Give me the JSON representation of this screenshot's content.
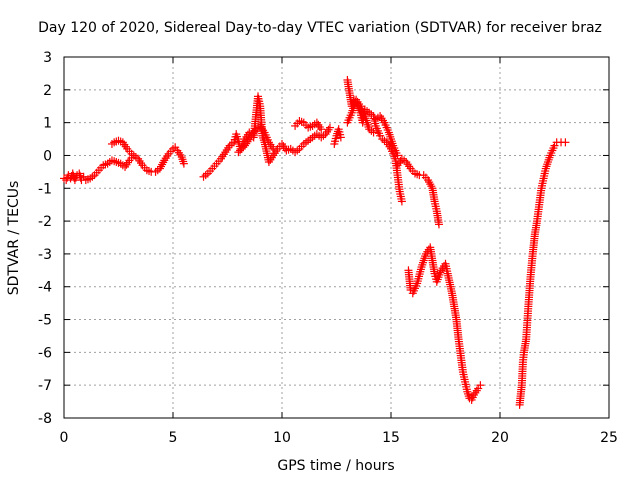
{
  "chart_data": {
    "type": "scatter",
    "title": "Day 120 of 2020, Sidereal Day-to-day VTEC variation (SDTVAR) for receiver braz",
    "xlabel": "GPS time / hours",
    "ylabel": "SDTVAR / TECUs",
    "xlim": [
      0,
      25
    ],
    "ylim": [
      -8,
      3
    ],
    "xticks": [
      0,
      5,
      10,
      15,
      20,
      25
    ],
    "yticks": [
      -8,
      -7,
      -6,
      -5,
      -4,
      -3,
      -2,
      -1,
      0,
      1,
      2,
      3
    ],
    "grid": true,
    "marker": "+",
    "color": "#ff0000",
    "series": [
      {
        "name": "braz",
        "segments": [
          [
            [
              0.0,
              -0.7
            ],
            [
              0.1,
              -0.75
            ],
            [
              0.2,
              -0.6
            ],
            [
              0.3,
              -0.7
            ],
            [
              0.4,
              -0.55
            ],
            [
              0.5,
              -0.75
            ],
            [
              0.6,
              -0.6
            ],
            [
              0.7,
              -0.55
            ],
            [
              0.8,
              -0.75
            ],
            [
              0.9,
              -0.65
            ],
            [
              1.0,
              -0.75
            ],
            [
              1.2,
              -0.7
            ],
            [
              1.4,
              -0.6
            ],
            [
              1.6,
              -0.45
            ],
            [
              1.8,
              -0.3
            ],
            [
              2.0,
              -0.25
            ],
            [
              2.2,
              -0.15
            ],
            [
              2.4,
              -0.2
            ],
            [
              2.6,
              -0.25
            ],
            [
              2.8,
              -0.35
            ],
            [
              3.0,
              -0.15
            ],
            [
              3.2,
              0.0
            ],
            [
              3.4,
              -0.1
            ],
            [
              3.6,
              -0.3
            ],
            [
              3.8,
              -0.45
            ],
            [
              4.0,
              -0.5
            ],
            [
              4.2,
              -0.5
            ],
            [
              4.4,
              -0.4
            ],
            [
              4.6,
              -0.15
            ],
            [
              4.8,
              0.05
            ],
            [
              5.0,
              0.2
            ],
            [
              5.1,
              0.25
            ],
            [
              5.2,
              0.15
            ],
            [
              5.4,
              -0.05
            ],
            [
              5.5,
              -0.25
            ]
          ],
          [
            [
              2.2,
              0.35
            ],
            [
              2.3,
              0.4
            ],
            [
              2.5,
              0.45
            ],
            [
              2.7,
              0.4
            ],
            [
              2.9,
              0.2
            ],
            [
              3.1,
              0.05
            ]
          ],
          [
            [
              6.4,
              -0.65
            ],
            [
              6.6,
              -0.55
            ],
            [
              6.8,
              -0.4
            ],
            [
              7.0,
              -0.25
            ],
            [
              7.2,
              -0.1
            ],
            [
              7.4,
              0.1
            ],
            [
              7.6,
              0.3
            ],
            [
              7.8,
              0.4
            ],
            [
              7.9,
              0.65
            ],
            [
              8.1,
              0.2
            ],
            [
              8.3,
              0.5
            ],
            [
              8.5,
              0.7
            ],
            [
              8.7,
              0.55
            ],
            [
              8.9,
              1.8
            ],
            [
              9.0,
              1.5
            ],
            [
              9.1,
              0.6
            ],
            [
              9.2,
              0.4
            ],
            [
              9.4,
              -0.2
            ],
            [
              9.6,
              0.0
            ],
            [
              9.8,
              0.2
            ],
            [
              10.0,
              0.35
            ],
            [
              10.2,
              0.15
            ],
            [
              10.4,
              0.2
            ],
            [
              10.6,
              0.1
            ],
            [
              10.8,
              0.2
            ],
            [
              11.0,
              0.35
            ],
            [
              11.2,
              0.45
            ],
            [
              11.4,
              0.55
            ],
            [
              11.6,
              0.65
            ],
            [
              11.8,
              0.55
            ],
            [
              12.0,
              0.65
            ],
            [
              12.2,
              0.85
            ]
          ],
          [
            [
              8.0,
              0.1
            ],
            [
              8.3,
              0.3
            ],
            [
              8.6,
              0.6
            ],
            [
              8.8,
              0.8
            ],
            [
              9.0,
              0.9
            ],
            [
              9.2,
              0.7
            ],
            [
              9.4,
              0.4
            ],
            [
              9.6,
              0.2
            ]
          ],
          [
            [
              10.6,
              0.9
            ],
            [
              10.8,
              1.05
            ],
            [
              11.0,
              1.0
            ],
            [
              11.2,
              0.85
            ],
            [
              11.4,
              0.9
            ],
            [
              11.6,
              1.0
            ],
            [
              11.8,
              0.8
            ]
          ],
          [
            [
              12.4,
              0.35
            ],
            [
              12.5,
              0.6
            ],
            [
              12.6,
              0.8
            ],
            [
              12.7,
              0.55
            ]
          ],
          [
            [
              13.0,
              2.3
            ],
            [
              13.1,
              1.9
            ],
            [
              13.2,
              1.5
            ],
            [
              13.3,
              1.7
            ],
            [
              13.4,
              1.6
            ],
            [
              13.5,
              1.45
            ],
            [
              13.6,
              1.3
            ],
            [
              13.7,
              1.0
            ],
            [
              13.8,
              1.4
            ],
            [
              14.0,
              1.3
            ],
            [
              14.2,
              1.2
            ],
            [
              14.3,
              0.9
            ],
            [
              14.5,
              0.6
            ],
            [
              14.6,
              0.5
            ],
            [
              14.8,
              0.4
            ],
            [
              15.0,
              0.2
            ],
            [
              15.2,
              -0.1
            ],
            [
              15.3,
              -0.6
            ],
            [
              15.4,
              -1.1
            ],
            [
              15.5,
              -1.4
            ]
          ],
          [
            [
              13.0,
              1.0
            ],
            [
              13.2,
              1.3
            ],
            [
              13.4,
              1.7
            ],
            [
              13.6,
              1.5
            ],
            [
              13.8,
              1.2
            ],
            [
              14.0,
              0.8
            ],
            [
              14.2,
              0.7
            ]
          ],
          [
            [
              14.3,
              1.1
            ],
            [
              14.5,
              1.2
            ],
            [
              14.7,
              1.0
            ],
            [
              14.9,
              0.7
            ],
            [
              15.1,
              0.3
            ],
            [
              15.3,
              0.0
            ]
          ],
          [
            [
              15.3,
              -0.3
            ],
            [
              15.5,
              -0.1
            ],
            [
              15.7,
              -0.2
            ],
            [
              15.9,
              -0.4
            ],
            [
              16.1,
              -0.55
            ],
            [
              16.3,
              -0.6
            ],
            [
              16.5,
              -0.6
            ],
            [
              16.7,
              -0.75
            ],
            [
              16.9,
              -1.0
            ],
            [
              17.0,
              -1.4
            ],
            [
              17.1,
              -1.7
            ],
            [
              17.2,
              -2.1
            ]
          ],
          [
            [
              15.8,
              -3.5
            ],
            [
              15.9,
              -4.1
            ],
            [
              16.0,
              -4.2
            ],
            [
              16.2,
              -3.9
            ],
            [
              16.4,
              -3.4
            ],
            [
              16.6,
              -3.0
            ],
            [
              16.8,
              -2.8
            ],
            [
              16.9,
              -3.2
            ],
            [
              17.0,
              -3.6
            ],
            [
              17.1,
              -3.85
            ],
            [
              17.3,
              -3.5
            ],
            [
              17.5,
              -3.3
            ],
            [
              17.6,
              -3.6
            ],
            [
              17.8,
              -4.2
            ],
            [
              18.0,
              -5.0
            ],
            [
              18.1,
              -5.6
            ],
            [
              18.2,
              -6.1
            ],
            [
              18.3,
              -6.6
            ],
            [
              18.4,
              -6.9
            ],
            [
              18.5,
              -7.2
            ],
            [
              18.6,
              -7.4
            ],
            [
              18.7,
              -7.45
            ],
            [
              18.8,
              -7.3
            ],
            [
              19.0,
              -7.1
            ],
            [
              19.1,
              -7.0
            ]
          ],
          [
            [
              20.9,
              -7.6
            ],
            [
              21.0,
              -7.0
            ],
            [
              21.05,
              -6.3
            ],
            [
              21.1,
              -6.0
            ],
            [
              21.2,
              -5.6
            ],
            [
              21.3,
              -4.6
            ],
            [
              21.4,
              -3.7
            ],
            [
              21.5,
              -3.0
            ],
            [
              21.6,
              -2.4
            ],
            [
              21.7,
              -2.0
            ],
            [
              21.8,
              -1.5
            ],
            [
              21.9,
              -1.0
            ],
            [
              22.0,
              -0.7
            ],
            [
              22.1,
              -0.4
            ],
            [
              22.2,
              -0.2
            ],
            [
              22.3,
              0.0
            ],
            [
              22.4,
              0.15
            ],
            [
              22.5,
              0.3
            ],
            [
              22.6,
              0.4
            ],
            [
              22.8,
              0.4
            ],
            [
              23.0,
              0.4
            ]
          ]
        ]
      }
    ]
  }
}
